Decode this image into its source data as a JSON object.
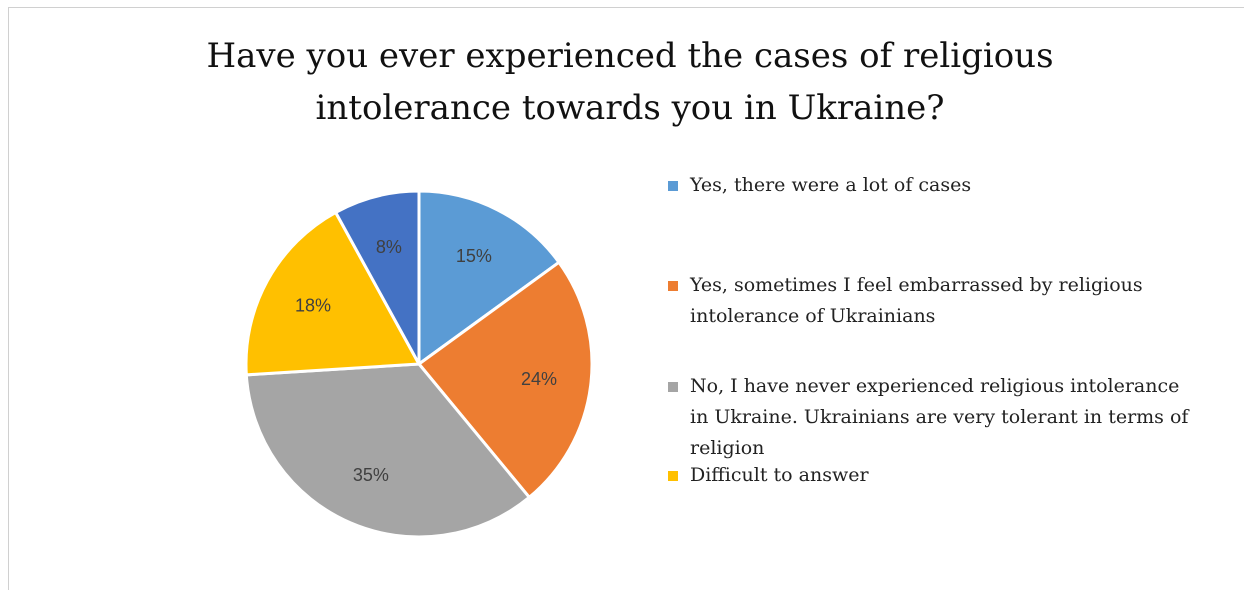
{
  "chart_data": {
    "type": "pie",
    "title": "Have you ever experienced  the cases of religious intolerance towards you in Ukraine?",
    "title_lines": [
      "Have you ever experienced  the cases of religious",
      "intolerance towards you in Ukraine?"
    ],
    "slices": [
      {
        "label": "Yes, there were a lot of cases",
        "value": 15,
        "display": "15%",
        "color": "#5b9bd5"
      },
      {
        "label": "Yes, sometimes I feel embarrassed by religious intolerance of Ukrainians",
        "value": 24,
        "display": "24%",
        "color": "#ed7d31"
      },
      {
        "label": "No, I have never experienced religious intolerance in Ukraine. Ukrainians are very tolerant in terms of religion",
        "value": 35,
        "display": "35%",
        "color": "#a5a5a5"
      },
      {
        "label": "Difficult to answer",
        "value": 18,
        "display": "18%",
        "color": "#ffc000"
      },
      {
        "label": "",
        "value": 8,
        "display": "8%",
        "color": "#4472c4"
      }
    ],
    "legend": [
      {
        "label_lines": [
          "Yes, there were a lot of cases"
        ],
        "color": "#5b9bd5"
      },
      {
        "label_lines": [
          "Yes, sometimes I feel embarrassed by religious",
          "intolerance of Ukrainians"
        ],
        "color": "#ed7d31"
      },
      {
        "label_lines": [
          "No, I have never experienced religious intolerance",
          "in Ukraine. Ukrainians are very tolerant in terms of",
          "religion"
        ],
        "color": "#a5a5a5"
      },
      {
        "label_lines": [
          "Difficult to answer"
        ],
        "color": "#ffc000"
      }
    ],
    "legend_position": "right"
  }
}
